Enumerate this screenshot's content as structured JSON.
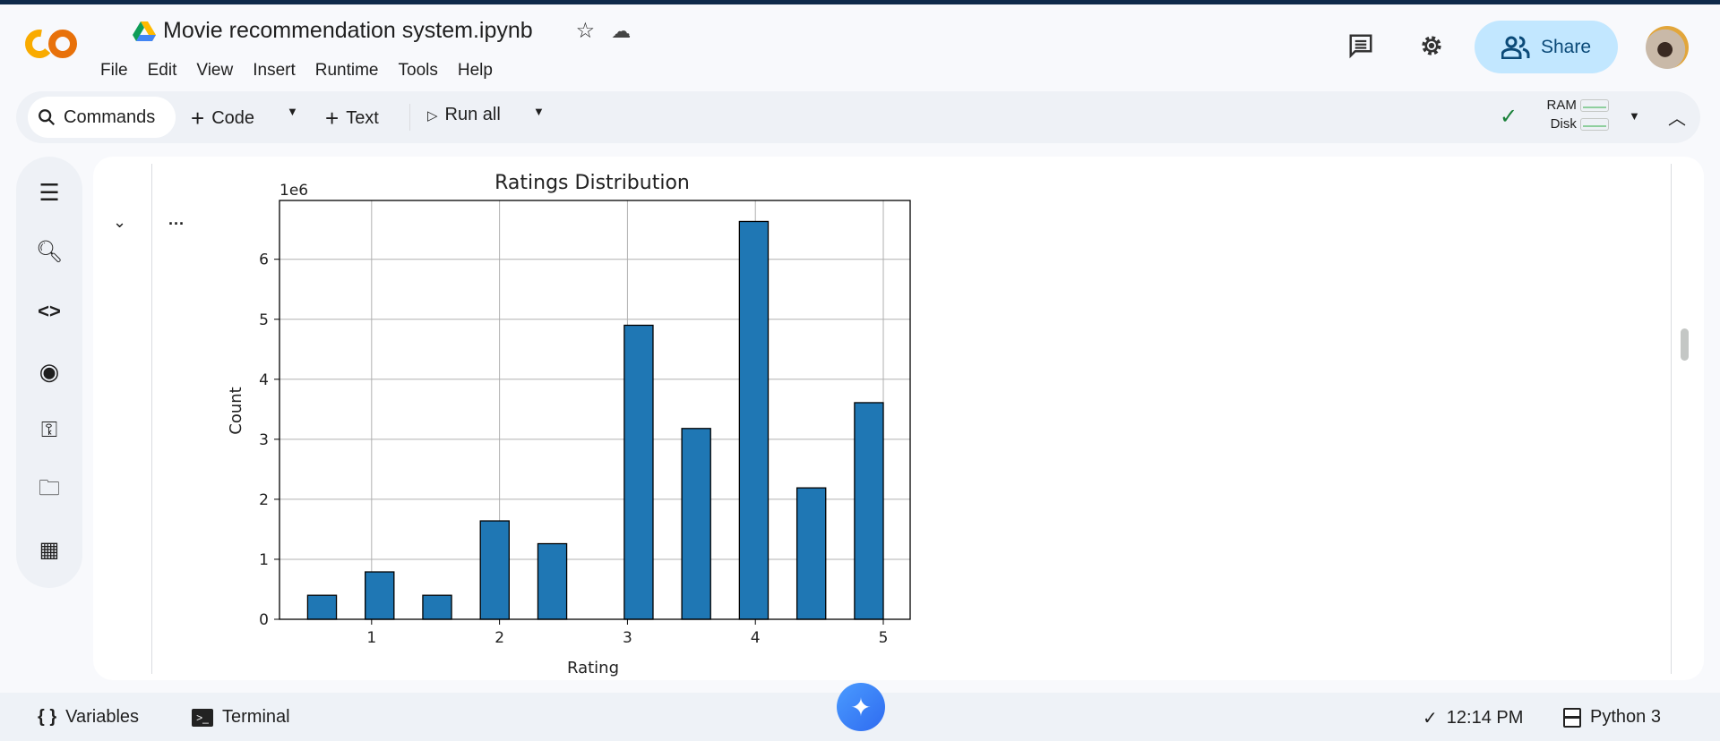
{
  "header": {
    "title": "Movie recommendation system.ipynb",
    "logo_text": "CO",
    "menu": [
      "File",
      "Edit",
      "View",
      "Insert",
      "Runtime",
      "Tools",
      "Help"
    ],
    "share_label": "Share"
  },
  "toolbar": {
    "commands": "Commands",
    "code": "Code",
    "text": "Text",
    "run_all": "Run all",
    "ram": "RAM",
    "disk": "Disk"
  },
  "sidebar": {
    "icons": [
      "table-of-contents-icon",
      "find-icon",
      "code-snippets-icon",
      "variable-inspector-icon",
      "secrets-key-icon",
      "files-folder-icon",
      "data-table-icon"
    ]
  },
  "status": {
    "variables": "Variables",
    "terminal": "Terminal",
    "time": "12:14 PM",
    "runtime": "Python 3"
  },
  "colors": {
    "bar": "#1f77b4",
    "share_bg": "#c2e7ff",
    "check": "#188038"
  },
  "chart_data": {
    "type": "bar",
    "title": "Ratings Distribution",
    "xlabel": "Rating",
    "ylabel": "Count",
    "y_offset_label": "1e6",
    "bin_range": [
      0.5,
      5
    ],
    "bins": 20,
    "counts_millions": [
      0.4,
      0,
      0.79,
      0,
      0.4,
      0,
      1.64,
      0,
      1.26,
      0,
      0,
      4.9,
      0,
      3.18,
      0,
      6.63,
      0,
      2.19,
      0,
      3.61
    ],
    "xlim": [
      0.28,
      5.21
    ],
    "ylim": [
      0,
      6.98
    ],
    "xticks": [
      "1",
      "2",
      "3",
      "4",
      "5"
    ],
    "yticks": [
      "0",
      "1",
      "2",
      "3",
      "4",
      "5",
      "6"
    ],
    "grid": true
  }
}
